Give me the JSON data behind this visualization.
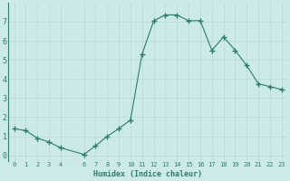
{
  "x": [
    0,
    1,
    2,
    3,
    4,
    6,
    7,
    8,
    9,
    10,
    11,
    12,
    13,
    14,
    15,
    16,
    17,
    18,
    19,
    20,
    21,
    22,
    23
  ],
  "y": [
    1.4,
    1.3,
    0.9,
    0.7,
    0.4,
    0.05,
    0.5,
    1.0,
    1.4,
    1.85,
    5.3,
    7.05,
    7.35,
    7.35,
    7.05,
    7.05,
    5.5,
    6.2,
    5.5,
    4.7,
    3.75,
    3.6,
    3.45
  ],
  "xlabel": "Humidex (Indice chaleur)",
  "xlim": [
    -0.5,
    23.5
  ],
  "ylim": [
    -0.3,
    8.0
  ],
  "line_color": "#2d7d6b",
  "marker_color": "#2d7d6b",
  "bg_color": "#cceaea",
  "grid_major_color": "#b8d8d8",
  "grid_minor_color": "#d0e8e8",
  "tick_label_color": "#2d7d6b",
  "xlabel_color": "#2d7d6b",
  "yticks": [
    0,
    1,
    2,
    3,
    4,
    5,
    6,
    7
  ],
  "xticks": [
    0,
    1,
    2,
    3,
    4,
    6,
    7,
    8,
    9,
    10,
    11,
    12,
    13,
    14,
    15,
    16,
    17,
    18,
    19,
    20,
    21,
    22,
    23
  ],
  "xtick_labels": [
    "0",
    "1",
    "2",
    "3",
    "4",
    "6",
    "7",
    "8",
    "9",
    "10",
    "11",
    "12",
    "13",
    "14",
    "15",
    "16",
    "17",
    "18",
    "19",
    "20",
    "21",
    "22",
    "23"
  ]
}
